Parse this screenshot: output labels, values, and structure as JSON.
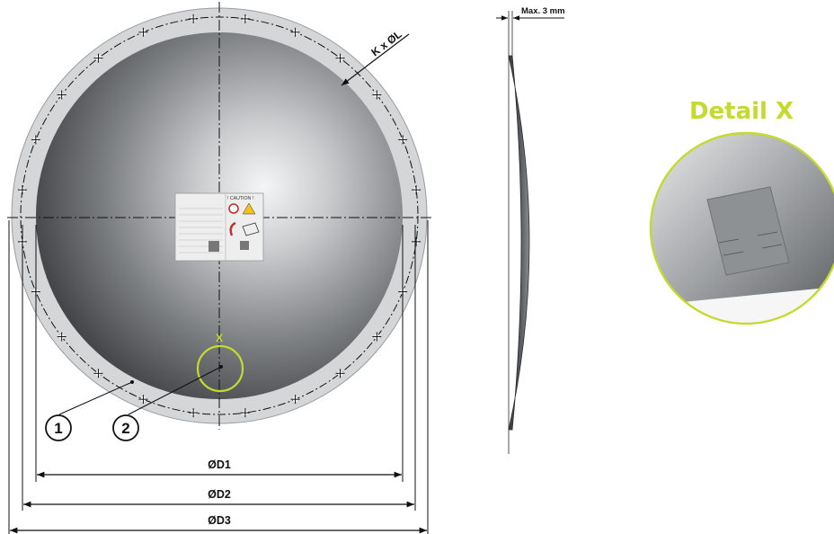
{
  "colors": {
    "accent": "#c6d92e",
    "rim": "#d4d6d8",
    "leader": "#111111",
    "dome_dark": "#2e3033",
    "dome_light": "#f4f5f6"
  },
  "front_view": {
    "bolt_spec": "K x ØL",
    "dimensions": {
      "d1": "ØD1",
      "d2": "ØD2",
      "d3": "ØD3"
    },
    "callouts": {
      "item1": "1",
      "item2": "2",
      "detail_marker": "X"
    },
    "label": {
      "caution": "! CAUTION !"
    }
  },
  "side_view": {
    "max_depth": "Max. 3 mm"
  },
  "detail_view": {
    "title": "Detail X"
  }
}
